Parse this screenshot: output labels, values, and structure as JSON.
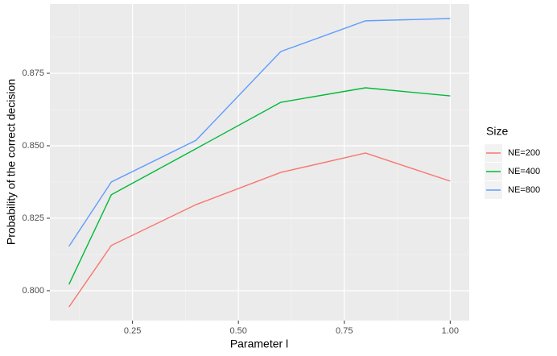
{
  "chart_data": {
    "type": "line",
    "x_label": "Parameter l",
    "y_label": "Probability of the correct decision",
    "legend_title": "Size",
    "legend_position": "right",
    "grid": true,
    "x": [
      0.1,
      0.2,
      0.4,
      0.6,
      0.8,
      1.0
    ],
    "series": [
      {
        "name": "NE=200",
        "color": "#f8766d",
        "values": [
          0.7944,
          0.8156,
          0.8297,
          0.8408,
          0.8475,
          0.8378
        ]
      },
      {
        "name": "NE=400",
        "color": "#00ba38",
        "values": [
          0.8022,
          0.8331,
          0.849,
          0.865,
          0.87,
          0.8672
        ]
      },
      {
        "name": "NE=800",
        "color": "#619cff",
        "values": [
          0.8153,
          0.8375,
          0.8519,
          0.8825,
          0.8931,
          0.8939
        ]
      }
    ],
    "xlim": [
      0.055,
      1.045
    ],
    "xticks": [
      {
        "value": 0.25,
        "label": "0.25"
      },
      {
        "value": 0.5,
        "label": "0.50"
      },
      {
        "value": 0.75,
        "label": "0.75"
      },
      {
        "value": 1.0,
        "label": "1.00"
      }
    ],
    "ylim": [
      0.7897,
      0.8989
    ],
    "yticks": [
      {
        "value": 0.8,
        "label": "0.800"
      },
      {
        "value": 0.825,
        "label": "0.825"
      },
      {
        "value": 0.85,
        "label": "0.850"
      },
      {
        "value": 0.875,
        "label": "0.875"
      }
    ]
  }
}
